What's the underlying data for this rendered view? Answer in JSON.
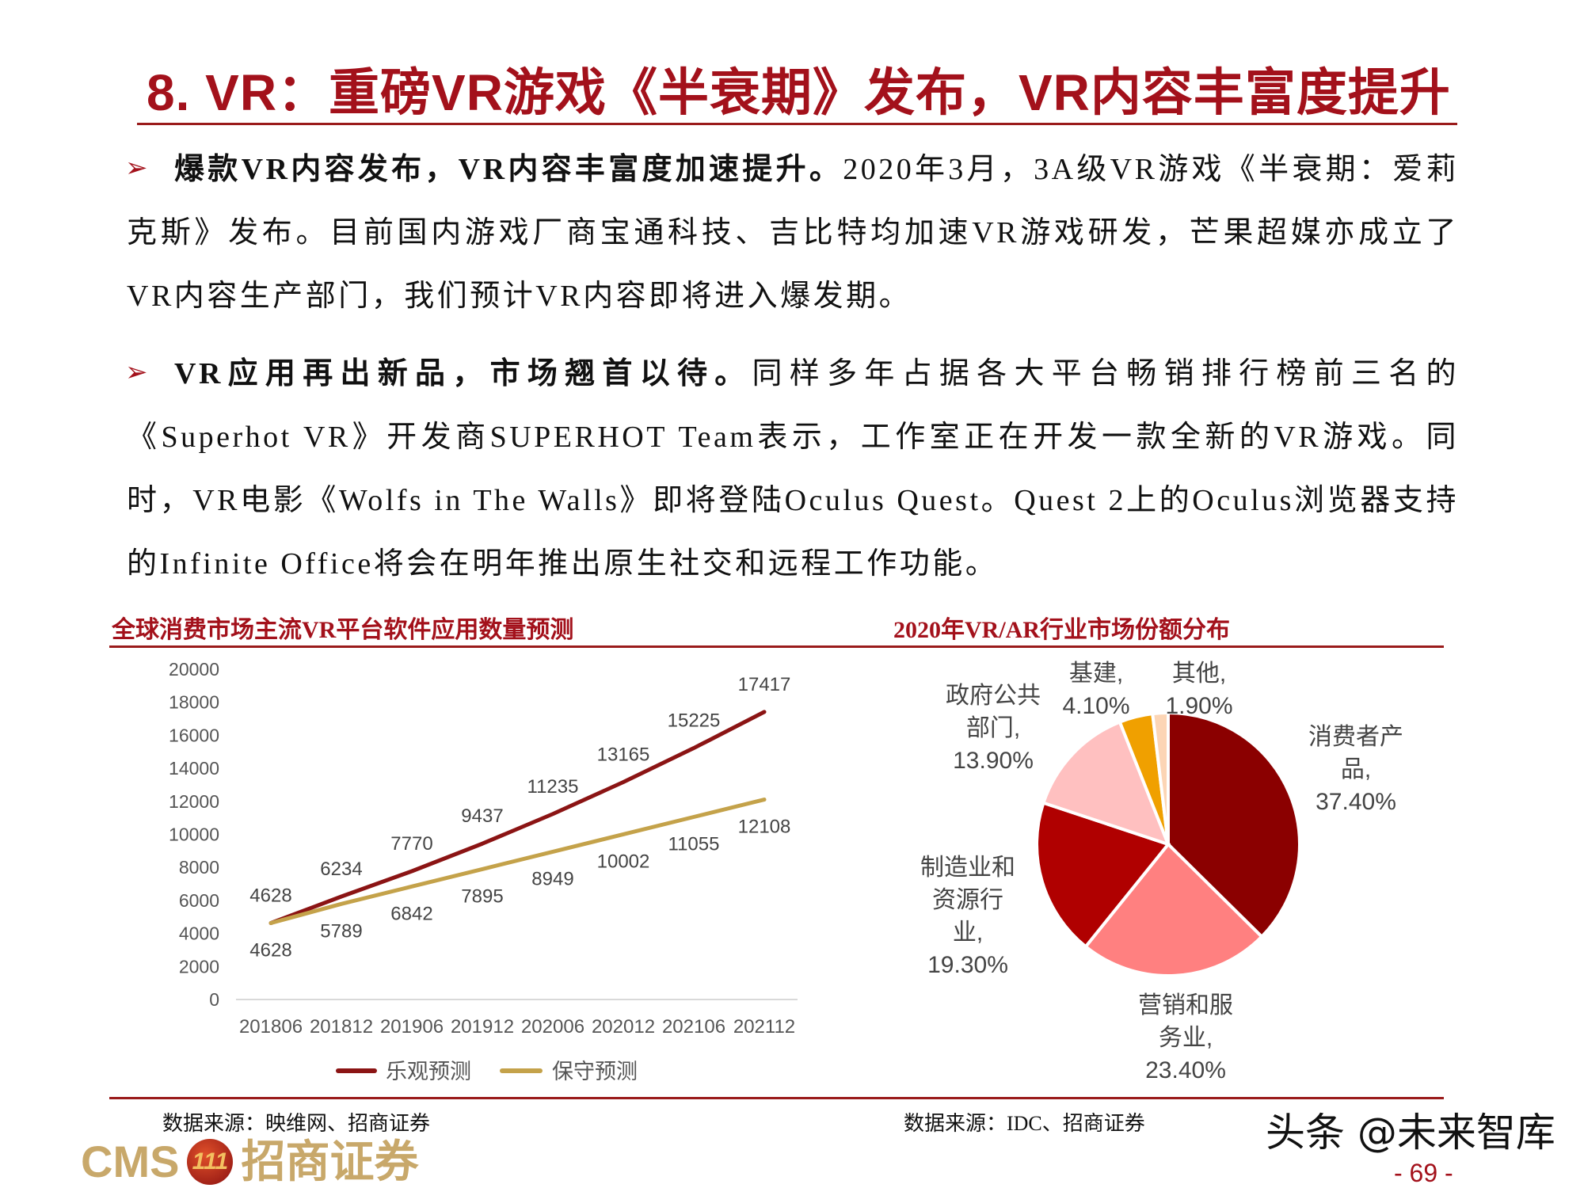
{
  "header": {
    "title": "8. VR：重磅VR游戏《半衰期》发布，VR内容丰富度提升"
  },
  "body": {
    "bullet_icon": "triangle-arrow-bullet",
    "paragraphs": [
      {
        "lead": "爆款VR内容发布，VR内容丰富度加速提升。",
        "text": "2020年3月，3A级VR游戏《半衰期：爱莉克斯》发布。目前国内游戏厂商宝通科技、吉比特均加速VR游戏研发，芒果超媒亦成立了VR内容生产部门，我们预计VR内容即将进入爆发期。"
      },
      {
        "lead": "VR应用再出新品，市场翘首以待。",
        "text": "同样多年占据各大平台畅销排行榜前三名的《Superhot VR》开发商SUPERHOT Team表示，工作室正在开发一款全新的VR游戏。同时，VR电影《Wolfs in The Walls》即将登陆Oculus Quest。Quest 2上的Oculus浏览器支持的Infinite Office将会在明年推出原生社交和远程工作功能。"
      }
    ]
  },
  "chart_data": [
    {
      "type": "line",
      "title": "全球消费市场主流VR平台软件应用数量预测",
      "categories": [
        "201806",
        "201812",
        "201906",
        "201912",
        "202006",
        "202012",
        "202106",
        "202112"
      ],
      "ylim": [
        0,
        20000
      ],
      "yticks": [
        "0",
        "2000",
        "4000",
        "6000",
        "8000",
        "10000",
        "12000",
        "14000",
        "16000",
        "18000",
        "20000"
      ],
      "series": [
        {
          "name": "乐观预测",
          "color": "#8b1414",
          "values": [
            4628,
            6234,
            7770,
            9437,
            11235,
            13165,
            15225,
            17417
          ]
        },
        {
          "name": "保守预测",
          "color": "#c4a24a",
          "values": [
            4628,
            5789,
            6842,
            7895,
            8949,
            10002,
            11055,
            12108
          ]
        }
      ],
      "legend": "bottom",
      "source": "数据来源：映维网、招商证券"
    },
    {
      "type": "pie",
      "title": "2020年VR/AR行业市场份额分布",
      "slices": [
        {
          "label": "消费者产品,",
          "lines": [
            "消费者产",
            "品,"
          ],
          "pct": "37.40%",
          "value": 37.4,
          "color": "#8b0000"
        },
        {
          "label": "营销和服务业,",
          "lines": [
            "营销和服",
            "务业,"
          ],
          "pct": "23.40%",
          "value": 23.4,
          "color": "#ff8080"
        },
        {
          "label": "制造业和资源行业,",
          "lines": [
            "制造业和",
            "资源行业,"
          ],
          "pct": "19.30%",
          "value": 19.3,
          "color": "#b00000"
        },
        {
          "label": "政府公共部门,",
          "lines": [
            "政府公共",
            "部门,"
          ],
          "pct": "13.90%",
          "value": 13.9,
          "color": "#ffc0c0"
        },
        {
          "label": "基建,",
          "lines": [
            "基建,"
          ],
          "pct": "4.10%",
          "value": 4.1,
          "color": "#f0a000"
        },
        {
          "label": "其他,",
          "lines": [
            "其他,"
          ],
          "pct": "1.90%",
          "value": 1.9,
          "color": "#fcd5b5"
        }
      ],
      "source": "数据来源：IDC、招商证券"
    }
  ],
  "footer": {
    "logo_text": "CMS",
    "logo_seal": "111",
    "logo_cn": "招商证券",
    "watermark": "头条 @未来智库",
    "page_number": "- 69 -"
  }
}
